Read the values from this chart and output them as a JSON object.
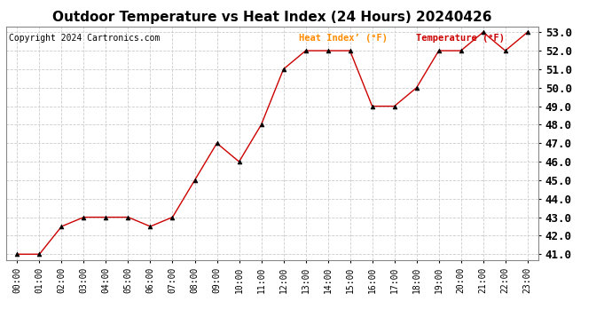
{
  "title": "Outdoor Temperature vs Heat Index (24 Hours) 20240426",
  "copyright": "Copyright 2024 Cartronics.com",
  "legend_heat": "Heat Index’ (°F)",
  "legend_temp": "Temperature (°F)",
  "x_labels": [
    "00:00",
    "01:00",
    "02:00",
    "03:00",
    "04:00",
    "05:00",
    "06:00",
    "07:00",
    "08:00",
    "09:00",
    "10:00",
    "11:00",
    "12:00",
    "13:00",
    "14:00",
    "15:00",
    "16:00",
    "17:00",
    "18:00",
    "19:00",
    "20:00",
    "21:00",
    "22:00",
    "23:00"
  ],
  "temperature": [
    41.0,
    41.0,
    42.5,
    43.0,
    43.0,
    43.0,
    42.5,
    43.0,
    45.0,
    47.0,
    46.0,
    48.0,
    51.0,
    52.0,
    52.0,
    52.0,
    49.0,
    49.0,
    50.0,
    52.0,
    52.0,
    53.0,
    52.0,
    53.0
  ],
  "ylim": [
    40.7,
    53.3
  ],
  "yticks": [
    41.0,
    42.0,
    43.0,
    44.0,
    45.0,
    46.0,
    47.0,
    48.0,
    49.0,
    50.0,
    51.0,
    52.0,
    53.0
  ],
  "line_color": "#cc0000",
  "marker": "^",
  "marker_color": "#000000",
  "bg_color": "#ffffff",
  "plot_bg_color": "#ffffff",
  "grid_color": "#cccccc",
  "title_fontsize": 11,
  "axis_fontsize": 7,
  "legend_fontsize": 7.5,
  "copyright_fontsize": 7,
  "ytick_fontsize": 9,
  "legend_heat_color": "#ff8c00",
  "legend_temp_color": "#cc0000"
}
